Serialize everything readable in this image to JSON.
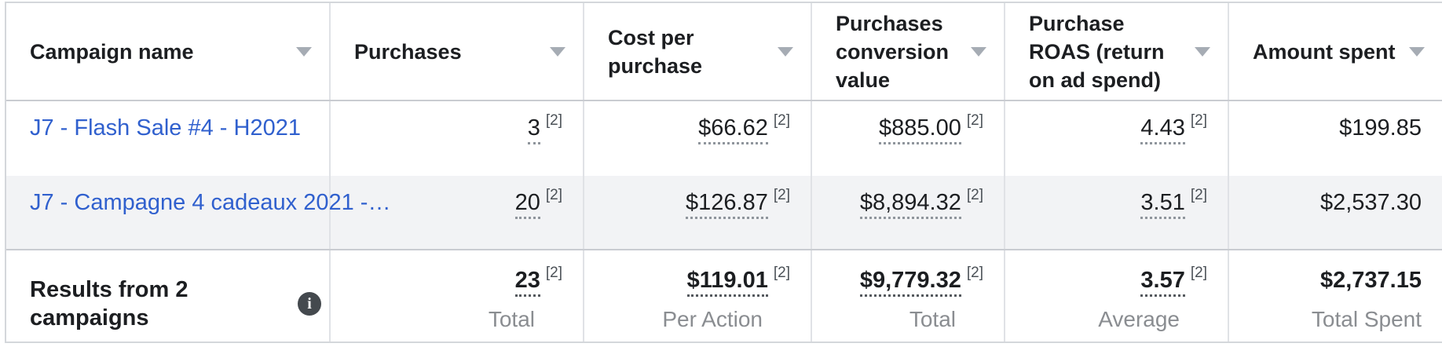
{
  "table": {
    "footnote_marker": "[2]",
    "header": {
      "campaign_name": "Campaign name",
      "purchases": "Purchases",
      "cost_per_purchase": "Cost per purchase",
      "conversion_value": "Purchases conversion value",
      "roas": "Purchase ROAS (return on ad spend)",
      "amount_spent": "Amount spent"
    },
    "rows": [
      {
        "name": "J7 - Flash Sale #4 - H2021",
        "purchases": "3",
        "cost_per_purchase": "$66.62",
        "conversion_value": "$885.00",
        "roas": "4.43",
        "amount_spent": "$199.85"
      },
      {
        "name": "J7 - Campagne 4 cadeaux 2021 -…",
        "purchases": "20",
        "cost_per_purchase": "$126.87",
        "conversion_value": "$8,894.32",
        "roas": "3.51",
        "amount_spent": "$2,537.30"
      }
    ],
    "totals": {
      "label": "Results from 2 campaigns",
      "purchases": {
        "value": "23",
        "caption": "Total"
      },
      "cost_per_purchase": {
        "value": "$119.01",
        "caption": "Per Action"
      },
      "conversion_value": {
        "value": "$9,779.32",
        "caption": "Total"
      },
      "roas": {
        "value": "3.57",
        "caption": "Average"
      },
      "amount_spent": {
        "value": "$2,737.15",
        "caption": "Total Spent"
      }
    }
  },
  "icons": {
    "sort_arrow": "chevron-down",
    "info_glyph": "i"
  },
  "colors": {
    "link_blue": "#3060ce",
    "header_text": "#1c1e21",
    "caption_gray": "#8a8d91",
    "alt_row_bg": "#f2f3f5",
    "divider": "#e0e2e6",
    "strong_border": "#c9ccd1"
  }
}
